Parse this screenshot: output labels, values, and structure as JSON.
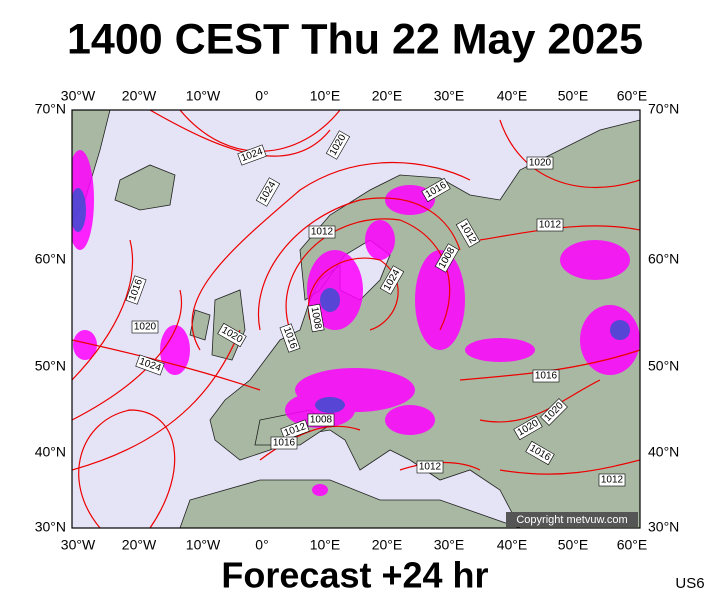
{
  "header": {
    "title": "1400 CEST Thu 22 May 2025"
  },
  "map": {
    "lon_labels": [
      "30°W",
      "20°W",
      "10°W",
      "0°",
      "10°E",
      "20°E",
      "30°E",
      "40°E",
      "50°E",
      "60°E"
    ],
    "lat_labels": [
      "70°N",
      "60°N",
      "50°N",
      "40°N",
      "30°N"
    ],
    "isobar_labels": [
      "1024",
      "1024",
      "1020",
      "1020",
      "1016",
      "1012",
      "1012",
      "1012",
      "1008",
      "1024",
      "1016",
      "1020",
      "1020",
      "1016",
      "1008",
      "1024",
      "1016",
      "1012",
      "1016",
      "1008",
      "1020",
      "1020",
      "1016",
      "1012",
      "1012"
    ],
    "copyright": "Copyright metvuw.com"
  },
  "footer": {
    "forecast": "Forecast +24 hr",
    "code": "US6"
  }
}
